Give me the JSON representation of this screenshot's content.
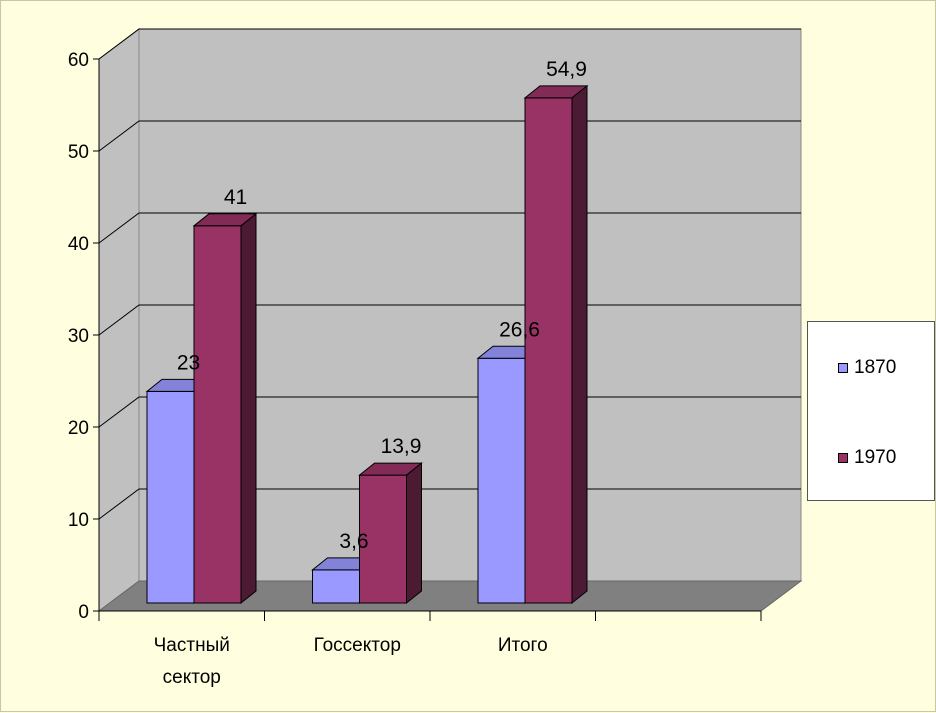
{
  "chart_data": {
    "type": "bar",
    "style": "3d-clustered-column",
    "categories": [
      "Частный сектор",
      "Госсектор",
      "Итого"
    ],
    "series": [
      {
        "name": "1870",
        "values": [
          23,
          3.6,
          26.6
        ],
        "labels": [
          "23",
          "3,6",
          "26,6"
        ],
        "color": "#9999ff"
      },
      {
        "name": "1970",
        "values": [
          41,
          13.9,
          54.9
        ],
        "labels": [
          "41",
          "13,9",
          "54,9"
        ],
        "color": "#993366"
      }
    ],
    "y_ticks": [
      "0",
      "10",
      "20",
      "30",
      "40",
      "50",
      "60"
    ],
    "ylim": [
      0,
      60
    ],
    "grid": true,
    "legend": "right",
    "colors": {
      "wall": "#c0c0c0",
      "floor": "#808080",
      "background": "#ffffe0"
    }
  }
}
